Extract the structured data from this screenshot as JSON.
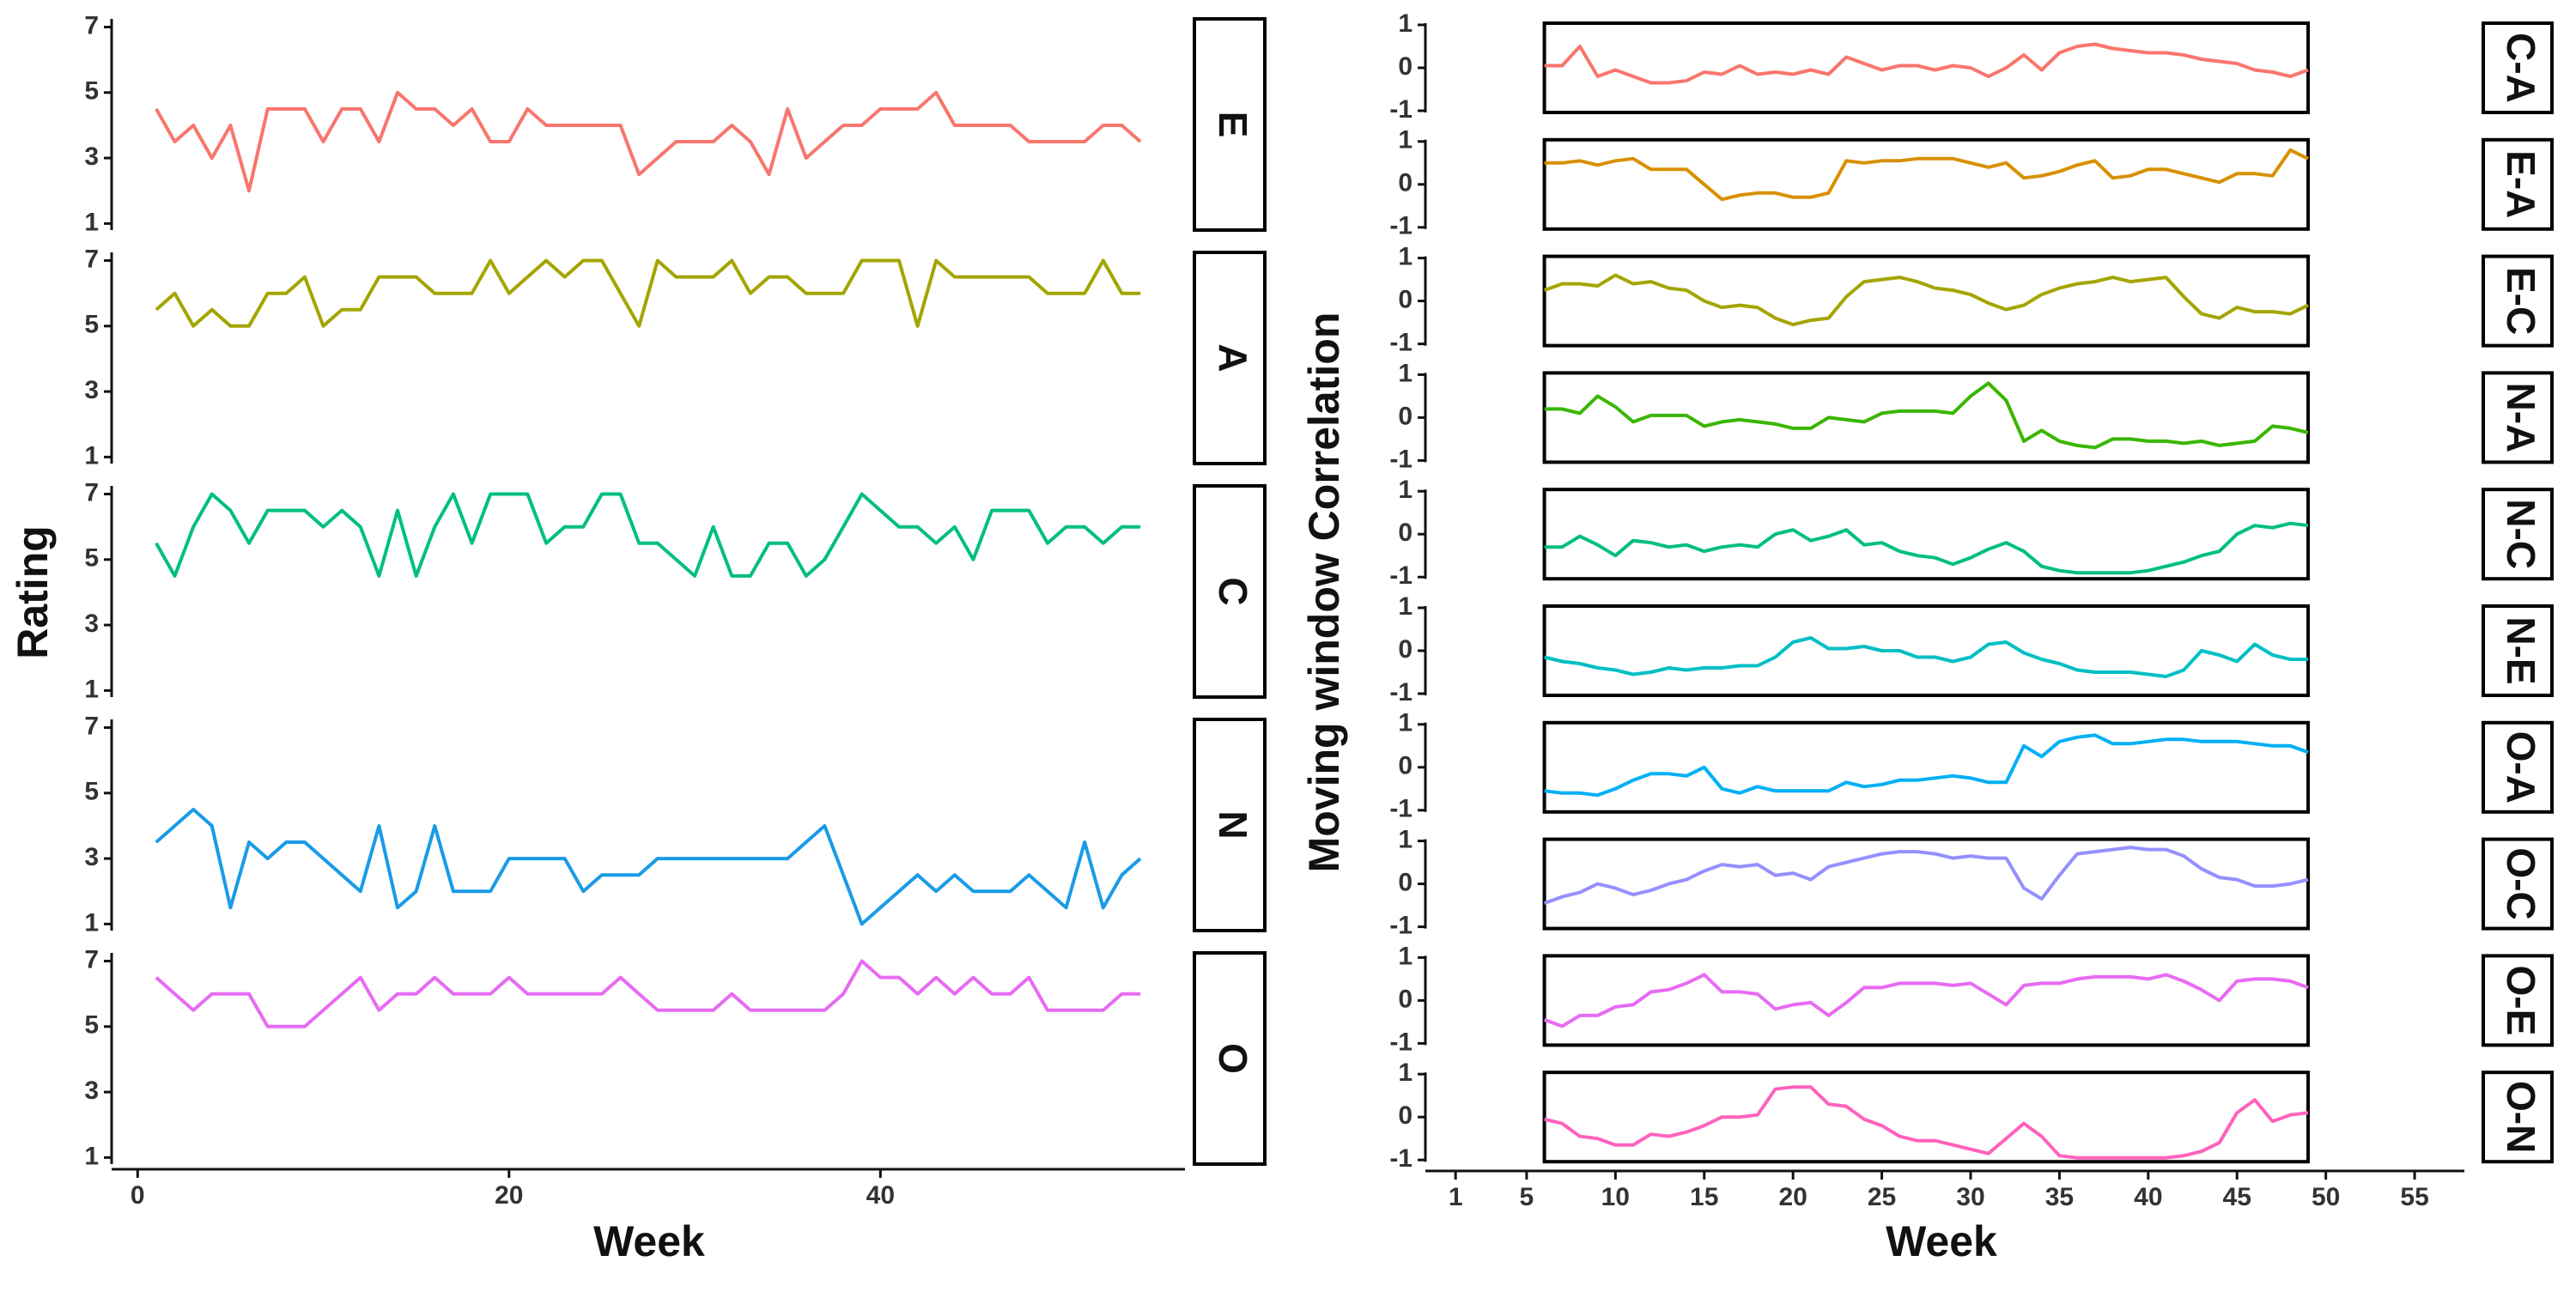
{
  "chart_data": [
    {
      "type": "line",
      "ylabel": "Rating",
      "xlabel": "Week",
      "x": [
        1,
        2,
        3,
        4,
        5,
        6,
        7,
        8,
        9,
        10,
        11,
        12,
        13,
        14,
        15,
        16,
        17,
        18,
        19,
        20,
        21,
        22,
        23,
        24,
        25,
        26,
        27,
        28,
        29,
        30,
        31,
        32,
        33,
        34,
        35,
        36,
        37,
        38,
        39,
        40,
        41,
        42,
        43,
        44,
        45,
        46,
        47,
        48,
        49,
        50,
        51,
        52,
        53,
        54
      ],
      "xlim": [
        -1.4,
        56.4
      ],
      "xticks": [
        0,
        20,
        40
      ],
      "ylim": [
        0.8,
        7.25
      ],
      "yticks": [
        1,
        3,
        5,
        7
      ],
      "series": [
        {
          "name": "E",
          "color": "#f8766d",
          "values": [
            4.5,
            3.5,
            4,
            3,
            4,
            2,
            4.5,
            4.5,
            4.5,
            3.5,
            4.5,
            4.5,
            3.5,
            5,
            4.5,
            4.5,
            4,
            4.5,
            3.5,
            3.5,
            4.5,
            4,
            4,
            4,
            4,
            4,
            2.5,
            3,
            3.5,
            3.5,
            3.5,
            4,
            3.5,
            2.5,
            4.5,
            3,
            3.5,
            4,
            4,
            4.5,
            4.5,
            4.5,
            5,
            4,
            4,
            4,
            4,
            3.5,
            3.5,
            3.5,
            3.5,
            4,
            4,
            3.5
          ]
        },
        {
          "name": "A",
          "color": "#a3a500",
          "values": [
            5.5,
            6,
            5,
            5.5,
            5,
            5,
            6,
            6,
            6.5,
            5,
            5.5,
            5.5,
            6.5,
            6.5,
            6.5,
            6,
            6,
            6,
            7,
            6,
            6.5,
            7,
            6.5,
            7,
            7,
            6,
            5,
            7,
            6.5,
            6.5,
            6.5,
            7,
            6,
            6.5,
            6.5,
            6,
            6,
            6,
            7,
            7,
            7,
            5,
            7,
            6.5,
            6.5,
            6.5,
            6.5,
            6.5,
            6,
            6,
            6,
            7,
            6,
            6
          ]
        },
        {
          "name": "C",
          "color": "#00bf7d",
          "values": [
            5.5,
            4.5,
            6,
            7,
            6.5,
            5.5,
            6.5,
            6.5,
            6.5,
            6,
            6.5,
            6,
            4.5,
            6.5,
            4.5,
            6,
            7,
            5.5,
            7,
            7,
            7,
            5.5,
            6,
            6,
            7,
            7,
            5.5,
            5.5,
            5,
            4.5,
            6,
            4.5,
            4.5,
            5.5,
            5.5,
            4.5,
            5,
            6,
            7,
            6.5,
            6,
            6,
            5.5,
            6,
            5,
            6.5,
            6.5,
            6.5,
            5.5,
            6,
            6,
            5.5,
            6,
            6
          ]
        },
        {
          "name": "N",
          "color": "#1a9be6",
          "values": [
            3.5,
            4,
            4.5,
            4,
            1.5,
            3.5,
            3,
            3.5,
            3.5,
            3,
            2.5,
            2,
            4,
            1.5,
            2,
            4,
            2,
            2,
            2,
            3,
            3,
            3,
            3,
            2,
            2.5,
            2.5,
            2.5,
            3,
            3,
            3,
            3,
            3,
            3,
            3,
            3,
            3.5,
            4,
            2.5,
            1,
            1.5,
            2,
            2.5,
            2,
            2.5,
            2,
            2,
            2,
            2.5,
            2,
            1.5,
            3.5,
            1.5,
            2.5,
            3
          ]
        },
        {
          "name": "O",
          "color": "#e76bf3",
          "values": [
            6.5,
            6,
            5.5,
            6,
            6,
            6,
            5,
            5,
            5,
            5.5,
            6,
            6.5,
            5.5,
            6,
            6,
            6.5,
            6,
            6,
            6,
            6.5,
            6,
            6,
            6,
            6,
            6,
            6.5,
            6,
            5.5,
            5.5,
            5.5,
            5.5,
            6,
            5.5,
            5.5,
            5.5,
            5.5,
            5.5,
            6,
            7,
            6.5,
            6.5,
            6,
            6.5,
            6,
            6.5,
            6,
            6,
            6.5,
            5.5,
            5.5,
            5.5,
            5.5,
            6,
            6
          ]
        }
      ]
    },
    {
      "type": "line",
      "ylabel": "Moving window Correlation",
      "xlabel": "Week",
      "x": [
        6,
        7,
        8,
        9,
        10,
        11,
        12,
        13,
        14,
        15,
        16,
        17,
        18,
        19,
        20,
        21,
        22,
        23,
        24,
        25,
        26,
        27,
        28,
        29,
        30,
        31,
        32,
        33,
        34,
        35,
        36,
        37,
        38,
        39,
        40,
        41,
        42,
        43,
        44,
        45,
        46,
        47,
        48,
        49
      ],
      "xlim": [
        -0.7,
        57.8
      ],
      "xticks": [
        1,
        5,
        10,
        15,
        20,
        25,
        30,
        35,
        40,
        45,
        50,
        55
      ],
      "ylim": [
        -1.04,
        1.04
      ],
      "yticks": [
        -1,
        0,
        1
      ],
      "series": [
        {
          "name": "C-A",
          "color": "#f8766d",
          "values": [
            0.05,
            0.05,
            0.5,
            -0.2,
            -0.05,
            -0.2,
            -0.35,
            -0.35,
            -0.3,
            -0.1,
            -0.15,
            0.05,
            -0.15,
            -0.1,
            -0.15,
            -0.05,
            -0.15,
            0.25,
            0.1,
            -0.05,
            0.05,
            0.05,
            -0.05,
            0.05,
            0,
            -0.2,
            0,
            0.3,
            -0.05,
            0.35,
            0.5,
            0.55,
            0.45,
            0.4,
            0.35,
            0.35,
            0.3,
            0.2,
            0.15,
            0.1,
            -0.05,
            -0.1,
            -0.2,
            -0.05
          ]
        },
        {
          "name": "E-A",
          "color": "#d89000",
          "values": [
            0.5,
            0.5,
            0.55,
            0.45,
            0.55,
            0.6,
            0.35,
            0.35,
            0.35,
            0,
            -0.35,
            -0.25,
            -0.2,
            -0.2,
            -0.3,
            -0.3,
            -0.2,
            0.55,
            0.5,
            0.55,
            0.55,
            0.6,
            0.6,
            0.6,
            0.5,
            0.4,
            0.5,
            0.15,
            0.2,
            0.3,
            0.45,
            0.55,
            0.15,
            0.2,
            0.35,
            0.35,
            0.25,
            0.15,
            0.05,
            0.25,
            0.25,
            0.2,
            0.8,
            0.6
          ]
        },
        {
          "name": "E-C",
          "color": "#a3a500",
          "values": [
            0.25,
            0.4,
            0.4,
            0.35,
            0.6,
            0.4,
            0.45,
            0.3,
            0.25,
            0,
            -0.15,
            -0.1,
            -0.15,
            -0.4,
            -0.55,
            -0.45,
            -0.4,
            0.1,
            0.45,
            0.5,
            0.55,
            0.45,
            0.3,
            0.25,
            0.15,
            -0.05,
            -0.2,
            -0.1,
            0.15,
            0.3,
            0.4,
            0.45,
            0.55,
            0.45,
            0.5,
            0.55,
            0.1,
            -0.3,
            -0.4,
            -0.15,
            -0.25,
            -0.25,
            -0.3,
            -0.1
          ]
        },
        {
          "name": "N-A",
          "color": "#39b600",
          "values": [
            0.2,
            0.2,
            0.1,
            0.5,
            0.25,
            -0.1,
            0.05,
            0.05,
            0.05,
            -0.2,
            -0.1,
            -0.05,
            -0.1,
            -0.15,
            -0.25,
            -0.25,
            0,
            -0.05,
            -0.1,
            0.1,
            0.15,
            0.15,
            0.15,
            0.1,
            0.5,
            0.8,
            0.4,
            -0.55,
            -0.3,
            -0.55,
            -0.65,
            -0.7,
            -0.5,
            -0.5,
            -0.55,
            -0.55,
            -0.6,
            -0.55,
            -0.65,
            -0.6,
            -0.55,
            -0.2,
            -0.25,
            -0.35
          ]
        },
        {
          "name": "N-C",
          "color": "#00bf7d",
          "values": [
            -0.3,
            -0.3,
            -0.05,
            -0.25,
            -0.5,
            -0.15,
            -0.2,
            -0.3,
            -0.25,
            -0.4,
            -0.3,
            -0.25,
            -0.3,
            0,
            0.1,
            -0.15,
            -0.05,
            0.1,
            -0.25,
            -0.2,
            -0.4,
            -0.5,
            -0.55,
            -0.7,
            -0.55,
            -0.35,
            -0.2,
            -0.4,
            -0.75,
            -0.85,
            -0.9,
            -0.9,
            -0.9,
            -0.9,
            -0.85,
            -0.75,
            -0.65,
            -0.5,
            -0.4,
            0,
            0.2,
            0.15,
            0.25,
            0.2
          ]
        },
        {
          "name": "N-E",
          "color": "#00bfc4",
          "values": [
            -0.15,
            -0.25,
            -0.3,
            -0.4,
            -0.45,
            -0.55,
            -0.5,
            -0.4,
            -0.45,
            -0.4,
            -0.4,
            -0.35,
            -0.35,
            -0.15,
            0.2,
            0.3,
            0.05,
            0.05,
            0.1,
            0,
            0,
            -0.15,
            -0.15,
            -0.25,
            -0.15,
            0.15,
            0.2,
            -0.05,
            -0.2,
            -0.3,
            -0.45,
            -0.5,
            -0.5,
            -0.5,
            -0.55,
            -0.6,
            -0.45,
            0,
            -0.1,
            -0.25,
            0.15,
            -0.1,
            -0.2,
            -0.2
          ]
        },
        {
          "name": "O-A",
          "color": "#00b0f6",
          "values": [
            -0.55,
            -0.6,
            -0.6,
            -0.65,
            -0.5,
            -0.3,
            -0.15,
            -0.15,
            -0.2,
            0,
            -0.5,
            -0.6,
            -0.45,
            -0.55,
            -0.55,
            -0.55,
            -0.55,
            -0.35,
            -0.45,
            -0.4,
            -0.3,
            -0.3,
            -0.25,
            -0.2,
            -0.25,
            -0.35,
            -0.35,
            0.5,
            0.25,
            0.6,
            0.7,
            0.75,
            0.55,
            0.55,
            0.6,
            0.65,
            0.65,
            0.6,
            0.6,
            0.6,
            0.55,
            0.5,
            0.5,
            0.35
          ]
        },
        {
          "name": "O-C",
          "color": "#9590ff",
          "values": [
            -0.45,
            -0.3,
            -0.2,
            0,
            -0.1,
            -0.25,
            -0.15,
            0,
            0.1,
            0.3,
            0.45,
            0.4,
            0.45,
            0.2,
            0.25,
            0.1,
            0.4,
            0.5,
            0.6,
            0.7,
            0.75,
            0.75,
            0.7,
            0.6,
            0.65,
            0.6,
            0.6,
            -0.1,
            -0.35,
            0.2,
            0.7,
            0.75,
            0.8,
            0.85,
            0.8,
            0.8,
            0.65,
            0.35,
            0.15,
            0.1,
            -0.05,
            -0.05,
            0,
            0.1
          ]
        },
        {
          "name": "O-E",
          "color": "#e76bf3",
          "values": [
            -0.45,
            -0.6,
            -0.35,
            -0.35,
            -0.15,
            -0.1,
            0.2,
            0.25,
            0.4,
            0.6,
            0.2,
            0.2,
            0.15,
            -0.2,
            -0.1,
            -0.05,
            -0.35,
            -0.05,
            0.3,
            0.3,
            0.4,
            0.4,
            0.4,
            0.35,
            0.4,
            0.15,
            -0.1,
            0.35,
            0.4,
            0.4,
            0.5,
            0.55,
            0.55,
            0.55,
            0.5,
            0.6,
            0.45,
            0.25,
            0,
            0.45,
            0.5,
            0.5,
            0.45,
            0.3
          ]
        },
        {
          "name": "O-N",
          "color": "#ff62bc",
          "values": [
            -0.05,
            -0.15,
            -0.45,
            -0.5,
            -0.65,
            -0.65,
            -0.4,
            -0.45,
            -0.35,
            -0.2,
            0,
            0,
            0.05,
            0.65,
            0.7,
            0.7,
            0.3,
            0.25,
            -0.05,
            -0.2,
            -0.45,
            -0.55,
            -0.55,
            -0.65,
            -0.75,
            -0.85,
            -0.5,
            -0.15,
            -0.45,
            -0.9,
            -0.95,
            -0.95,
            -0.95,
            -0.95,
            -0.95,
            -0.95,
            -0.9,
            -0.8,
            -0.6,
            0.1,
            0.4,
            -0.1,
            0.05,
            0.1
          ]
        }
      ]
    }
  ]
}
